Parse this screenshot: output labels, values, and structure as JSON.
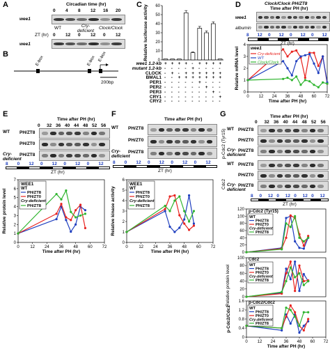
{
  "panels": {
    "A": {
      "label": "A",
      "header": "Circadian time (hr)",
      "ct_ticks": [
        "0",
        "4",
        "8",
        "12",
        "16",
        "20"
      ],
      "row1_label": "wee1",
      "genotypes": [
        "WT",
        "Cry-deficient",
        "Clock/Clock"
      ],
      "zt_label": "ZT (hr)",
      "zt_ticks": [
        "0",
        "12",
        "0",
        "12",
        "0",
        "12"
      ],
      "row2_label": "wee1"
    },
    "B": {
      "label": "B",
      "boxes": [
        "E-box",
        "E-box",
        "E-box"
      ],
      "scale": "200bp"
    },
    "C": {
      "label": "C",
      "ylabel": "Relative luciferase activity",
      "rows": [
        "wee1 1.2-kb",
        "mutant 1.2-kb",
        "CLOCK",
        "BMAL1",
        "PER1",
        "PER2",
        "PER3",
        "CRY1",
        "CRY2"
      ]
    },
    "D": {
      "label": "D",
      "header1": "Clock/Clock PH/ZT8",
      "header2": "Time after PH (hr)",
      "row1": "wee1",
      "row2": "albumin",
      "zt_ticks_top": [
        "8",
        "12",
        "0",
        "12",
        "0",
        "12",
        "0",
        "12"
      ],
      "zt_label": "ZT (hr)",
      "legend_title": "wee1",
      "legend": [
        "Cry-deficient",
        "WT",
        "Clock/Clock"
      ],
      "ylabel": "Relative mRNA level",
      "xlabel": "Time after PH (hr)",
      "xticks": [
        "0",
        "12",
        "24",
        "36",
        "48",
        "60",
        "72"
      ]
    },
    "E": {
      "label": "E",
      "header": "Time after PH (hr)",
      "ticks": [
        "0",
        "32",
        "36",
        "40",
        "44",
        "48",
        "52",
        "56"
      ],
      "rows": [
        {
          "geno": "WT",
          "cond": "PH/ZT8"
        },
        {
          "geno": "",
          "cond": "PH/ZT0"
        },
        {
          "geno": "Cry-deficient",
          "cond": "PH/ZT8"
        }
      ],
      "zt_label": "ZT (hr)",
      "legend_title": "WEE1",
      "legend_wt": "WT",
      "legend": [
        "PH/ZT8",
        "PH/ZT0",
        "Cry-deficient",
        "PH/ZT8"
      ],
      "ylabel": "Relative protein level",
      "xlabel": "Time after PH (hr)",
      "xticks": [
        "0",
        "12",
        "24",
        "36",
        "48",
        "60",
        "72"
      ]
    },
    "F": {
      "label": "F",
      "header": "Time after PH (hr)",
      "rows": [
        {
          "geno": "WT",
          "cond": "PH/ZT8"
        },
        {
          "geno": "",
          "cond": "PH/ZT0"
        },
        {
          "geno": "Cry-deficient",
          "cond": "PH/ZT8"
        }
      ],
      "zt_label": "ZT (hr)",
      "legend_title": "WEE1",
      "legend_wt": "WT",
      "legend": [
        "PH/ZT8",
        "PH/ZT0",
        "Cry-deficient",
        "PH/ZT8"
      ],
      "ylabel": "Relative kinase activity",
      "xlabel": "Time after PH (hr)",
      "xticks": [
        "0",
        "12",
        "24",
        "36",
        "48",
        "60",
        "72"
      ]
    },
    "G": {
      "label": "G",
      "header": "Time after PH (hr)",
      "ticks": [
        "0",
        "32",
        "36",
        "40",
        "44",
        "48",
        "52",
        "56"
      ],
      "group1": "p-Cdc2 (Tyr15)",
      "group2": "Cdc2",
      "rows": [
        {
          "geno": "WT",
          "cond": "PH/ZT8"
        },
        {
          "geno": "",
          "cond": "PH/ZT0"
        },
        {
          "geno": "Cry-deficient",
          "cond": "PH/ZT8"
        }
      ],
      "zt_label": "ZT (hr)",
      "sub1_title": "p-Cdc2 (Tyr15)",
      "sub2_title": "Cdc2",
      "sub3_title": "p-Cdc2/Cdc2",
      "legend_wt": "WT",
      "legend": [
        "PH/ZT8",
        "PH/ZT0",
        "Cry-deficient",
        "PH/ZT8"
      ],
      "ylabel_mid": "Relative protein level",
      "ylabel_bot": "p-Cdc2/Cdc2",
      "xlabel": "Time after PH (hr)",
      "xticks": [
        "0",
        "12",
        "24",
        "36",
        "48",
        "60",
        "72"
      ]
    }
  },
  "chart_data": [
    {
      "type": "bar",
      "panel": "C",
      "ylabel": "Relative luciferase activity",
      "values": [
        1,
        1,
        1,
        52,
        8,
        35,
        30,
        40,
        1
      ],
      "errors": [
        0.5,
        0.5,
        0.5,
        2.5,
        0.8,
        2,
        2,
        2,
        0.5
      ],
      "ylim": [
        0,
        60
      ],
      "yticks": [
        0,
        10,
        20,
        30,
        40,
        50,
        60
      ]
    },
    {
      "type": "line",
      "panel": "D",
      "xlim": [
        0,
        72
      ],
      "ylim": [
        0,
        4
      ],
      "yticks": [
        0,
        1,
        2,
        3,
        4
      ],
      "series": [
        {
          "name": "Cry-deficient",
          "color": "#e8221e",
          "x": [
            0,
            32,
            36,
            40,
            44,
            48,
            52,
            56,
            60,
            64,
            68,
            72
          ],
          "y": [
            1.0,
            3.6,
            3.0,
            3.4,
            3.5,
            2.9,
            1.2,
            3.3,
            3.3,
            2.2,
            3.0,
            0.7
          ]
        },
        {
          "name": "WT",
          "color": "#1f3fbf",
          "x": [
            0,
            32,
            36,
            40,
            44,
            48,
            52,
            56,
            60,
            64,
            68,
            72
          ],
          "y": [
            1.0,
            2.6,
            2.0,
            1.4,
            2.6,
            3.0,
            3.1,
            3.2,
            2.4,
            1.6,
            3.0,
            0.8
          ]
        },
        {
          "name": "Clock/Clock",
          "color": "#2fb52f",
          "x": [
            0,
            32,
            36,
            40,
            44,
            48,
            52,
            56,
            60,
            64,
            68,
            72
          ],
          "y": [
            1.0,
            1.1,
            1.2,
            1.0,
            1.3,
            0.6,
            1.0,
            0.9,
            0.6,
            0.4,
            0.8,
            0.7
          ]
        }
      ]
    },
    {
      "type": "line",
      "panel": "E",
      "xlim": [
        0,
        72
      ],
      "ylim": [
        0,
        7
      ],
      "yticks": [
        0,
        1,
        2,
        3,
        4,
        5,
        6,
        7
      ],
      "series": [
        {
          "name": "PH/ZT8",
          "color": "#1f3fbf",
          "x": [
            0,
            32,
            36,
            40,
            44,
            48,
            52,
            56
          ],
          "y": [
            1.0,
            2.6,
            4.0,
            2.5,
            1.2,
            2.0,
            4.0,
            3.6
          ]
        },
        {
          "name": "PH/ZT0",
          "color": "#e8221e",
          "x": [
            0,
            32,
            36,
            40,
            44,
            48,
            52,
            56
          ],
          "y": [
            1.0,
            3.2,
            4.3,
            2.8,
            2.5,
            3.6,
            4.2,
            1.6
          ]
        },
        {
          "name": "PH/ZT8",
          "color": "#2fb52f",
          "x": [
            0,
            32,
            36,
            40,
            44,
            48,
            52,
            56
          ],
          "y": [
            1.0,
            5.4,
            4.8,
            5.8,
            3.4,
            2.8,
            3.0,
            3.2
          ]
        }
      ]
    },
    {
      "type": "line",
      "panel": "F",
      "xlim": [
        0,
        72
      ],
      "ylim": [
        0,
        6
      ],
      "yticks": [
        0,
        1,
        2,
        3,
        4,
        5,
        6
      ],
      "series": [
        {
          "name": "PH/ZT8",
          "color": "#1f3fbf",
          "x": [
            0,
            32,
            36,
            40,
            44,
            48,
            52,
            56
          ],
          "y": [
            1.0,
            3.0,
            1.5,
            1.0,
            1.4,
            2.2,
            4.5,
            1.8
          ]
        },
        {
          "name": "PH/ZT0",
          "color": "#e8221e",
          "x": [
            0,
            32,
            36,
            40,
            44,
            48,
            52,
            56
          ],
          "y": [
            1.0,
            3.2,
            4.4,
            4.5,
            2.6,
            1.8,
            1.2,
            1.6
          ]
        },
        {
          "name": "PH/ZT8",
          "color": "#2fb52f",
          "x": [
            0,
            32,
            36,
            40,
            44,
            48,
            52,
            56
          ],
          "y": [
            1.0,
            3.5,
            3.0,
            4.0,
            4.4,
            3.0,
            2.0,
            3.0
          ]
        }
      ]
    },
    {
      "type": "line",
      "panel": "G-p-Cdc2",
      "xlim": [
        0,
        72
      ],
      "ylim": [
        0,
        120
      ],
      "yticks": [
        0,
        20,
        40,
        60,
        80,
        100,
        120
      ],
      "series": [
        {
          "name": "PH/ZT8",
          "color": "#1f3fbf",
          "x": [
            0,
            32,
            36,
            40,
            44,
            48,
            52,
            56
          ],
          "y": [
            0,
            12,
            95,
            100,
            30,
            12,
            10,
            40
          ]
        },
        {
          "name": "PH/ZT0",
          "color": "#e8221e",
          "x": [
            0,
            32,
            36,
            40,
            44,
            48,
            52,
            56
          ],
          "y": [
            0,
            10,
            40,
            102,
            95,
            50,
            18,
            45
          ]
        },
        {
          "name": "PH/ZT8",
          "color": "#2fb52f",
          "x": [
            0,
            32,
            36,
            40,
            44,
            48,
            52,
            56
          ],
          "y": [
            0,
            8,
            80,
            70,
            100,
            40,
            30,
            40
          ]
        }
      ]
    },
    {
      "type": "line",
      "panel": "G-Cdc2",
      "xlim": [
        0,
        72
      ],
      "ylim": [
        0,
        100
      ],
      "yticks": [
        0,
        20,
        40,
        60,
        80,
        100
      ],
      "series": [
        {
          "name": "PH/ZT8",
          "color": "#1f3fbf",
          "x": [
            0,
            32,
            36,
            40,
            44,
            48,
            52,
            56
          ],
          "y": [
            0,
            10,
            72,
            45,
            90,
            15,
            58,
            40
          ]
        },
        {
          "name": "PH/ZT0",
          "color": "#e8221e",
          "x": [
            0,
            32,
            36,
            40,
            44,
            48,
            52,
            56
          ],
          "y": [
            0,
            8,
            60,
            90,
            15,
            80,
            40,
            42
          ]
        },
        {
          "name": "PH/ZT8",
          "color": "#2fb52f",
          "x": [
            0,
            32,
            36,
            40,
            44,
            48,
            52,
            56
          ],
          "y": [
            0,
            12,
            40,
            75,
            50,
            60,
            30,
            40
          ]
        }
      ]
    },
    {
      "type": "line",
      "panel": "G-ratio",
      "xlim": [
        0,
        72
      ],
      "ylim": [
        0,
        1.6
      ],
      "yticks": [
        0,
        0.4,
        0.8,
        1.2,
        1.6
      ],
      "series": [
        {
          "name": "PH/ZT8",
          "color": "#1f3fbf",
          "x": [
            0,
            32,
            36,
            40,
            44,
            48,
            52,
            56
          ],
          "y": [
            0.5,
            0.3,
            1.0,
            0.6,
            1.0,
            0.2,
            0.5,
            0.7
          ]
        },
        {
          "name": "PH/ZT0",
          "color": "#e8221e",
          "x": [
            0,
            32,
            36,
            40,
            44,
            48,
            52,
            56
          ],
          "y": [
            0.5,
            0.4,
            0.9,
            1.4,
            1.1,
            0.5,
            0.3,
            0.8
          ]
        },
        {
          "name": "PH/ZT8",
          "color": "#2fb52f",
          "x": [
            0,
            32,
            36,
            40,
            44,
            48,
            52,
            56
          ],
          "y": [
            0.5,
            0.4,
            1.3,
            1.2,
            0.9,
            0.5,
            1.1,
            1.1
          ]
        }
      ]
    }
  ]
}
